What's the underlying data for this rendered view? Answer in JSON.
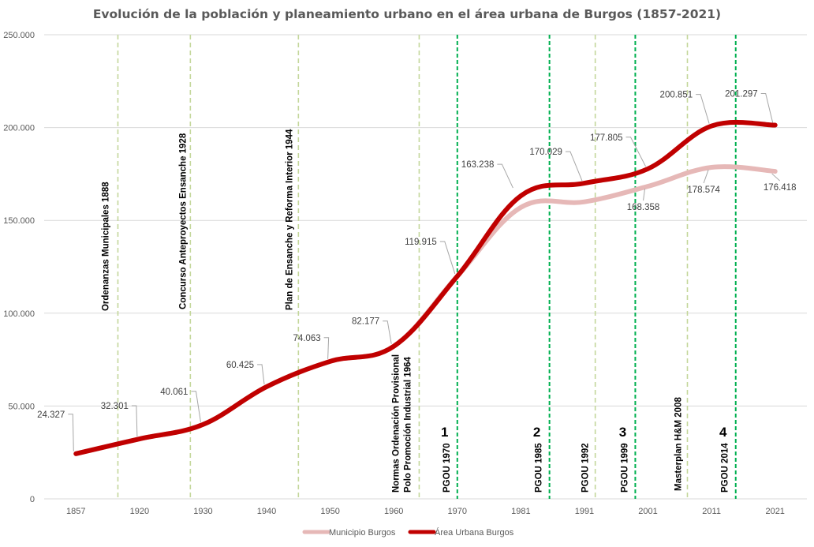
{
  "chart_data": {
    "type": "line",
    "title": "Evolución de la población y planeamiento urbano en el área urbana de Burgos (1857-2021)",
    "xlabel": "",
    "ylabel": "",
    "categories": [
      "1857",
      "1920",
      "1930",
      "1940",
      "1950",
      "1960",
      "1970",
      "1981",
      "1991",
      "2001",
      "2011",
      "2021"
    ],
    "ylim": [
      0,
      250000
    ],
    "yticks": [
      {
        "value": 0,
        "label": "0"
      },
      {
        "value": 50000,
        "label": "50.000"
      },
      {
        "value": 100000,
        "label": "100.000"
      },
      {
        "value": 150000,
        "label": "150.000"
      },
      {
        "value": 200000,
        "label": "200.000"
      },
      {
        "value": 250000,
        "label": "250.000"
      }
    ],
    "grid": true,
    "legend_position": "bottom",
    "series": [
      {
        "name": "Municipio Burgos",
        "color": "#e6b8b7",
        "values": [
          24327,
          32301,
          40061,
          60425,
          74063,
          82177,
          119915,
          157000,
          160000,
          168358,
          178574,
          176418
        ],
        "labels": [
          null,
          null,
          null,
          null,
          null,
          null,
          null,
          null,
          null,
          "168.358",
          "178.574",
          "176.418"
        ]
      },
      {
        "name": "Área Urbana Burgos",
        "color": "#c00000",
        "values": [
          24327,
          32301,
          40061,
          60425,
          74063,
          82177,
          119915,
          163238,
          170029,
          177805,
          200851,
          201297
        ],
        "labels": [
          "24.327",
          "32.301",
          "40.061",
          "60.425",
          "74.063",
          "82.177",
          "119.915",
          "163.238",
          "170.029",
          "177.805",
          "200.851",
          "201.297"
        ]
      }
    ],
    "reference_lines": [
      {
        "year": 1888,
        "label": "Ordenanzas Municipales 1888",
        "color": "#c4d79b",
        "type": "minor",
        "pos": 0.66
      },
      {
        "year": 1928,
        "label": "Concurso Anteproyectos Ensanche 1928",
        "color": "#c4d79b",
        "type": "minor",
        "pos": 1.8
      },
      {
        "year": 1944,
        "label": "Plan de Ensanche y Reforma Interior 1944",
        "color": "#c4d79b",
        "type": "minor",
        "pos": 3.5
      },
      {
        "year": 1964,
        "label": "Normas Ordenación Provisional|Polo Promoción Industrial  1964",
        "color": "#c4d79b",
        "type": "minor",
        "pos": 5.4
      },
      {
        "year": 1970,
        "label": "PGOU 1970",
        "color": "#00b050",
        "type": "major",
        "phase": "1",
        "pos": 6.0
      },
      {
        "year": 1985,
        "label": "PGOU 1985",
        "color": "#00b050",
        "type": "major",
        "phase": "2",
        "pos": 7.45
      },
      {
        "year": 1992,
        "label": "PGOU 1992",
        "color": "#c4d79b",
        "type": "minor",
        "pos": 8.17
      },
      {
        "year": 1999,
        "label": "PGOU 1999",
        "color": "#00b050",
        "type": "major",
        "phase": "3",
        "pos": 8.8
      },
      {
        "year": 2008,
        "label": "Masterplan H&M 2008",
        "color": "#c4d79b",
        "type": "minor",
        "pos": 9.62
      },
      {
        "year": 2014,
        "label": "PGOU 2014",
        "color": "#00b050",
        "type": "major",
        "phase": "4",
        "pos": 10.38
      }
    ]
  }
}
